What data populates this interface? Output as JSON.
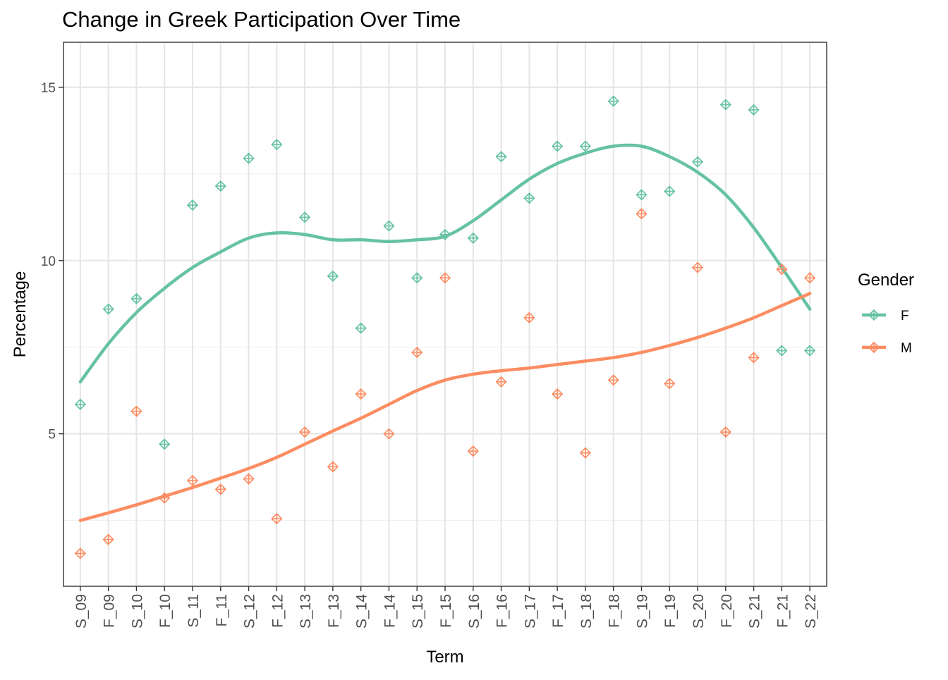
{
  "chart_data": {
    "type": "scatter",
    "title": "Change in Greek Participation Over Time",
    "xlabel": "Term",
    "ylabel": "Percentage",
    "ylim": [
      0.6,
      16.3
    ],
    "yticks": [
      5,
      10,
      15
    ],
    "grid": true,
    "legend": {
      "title": "Gender",
      "placement": "right"
    },
    "categories": [
      "S_09",
      "F_09",
      "S_10",
      "F_10",
      "S_11",
      "F_11",
      "S_12",
      "F_12",
      "S_13",
      "F_13",
      "S_14",
      "F_14",
      "S_15",
      "F_15",
      "S_16",
      "F_16",
      "S_17",
      "F_17",
      "S_18",
      "F_18",
      "S_19",
      "F_19",
      "S_20",
      "F_20",
      "S_21",
      "F_21",
      "S_22"
    ],
    "series": [
      {
        "name": "F",
        "color": "#66c2a5",
        "values": [
          5.85,
          8.6,
          8.9,
          4.7,
          11.6,
          12.15,
          12.95,
          13.35,
          11.25,
          9.55,
          8.05,
          11.0,
          9.5,
          10.75,
          10.65,
          13.0,
          11.8,
          13.3,
          13.3,
          14.6,
          11.9,
          12.0,
          12.85,
          14.5,
          14.35,
          7.4,
          7.4
        ],
        "smooth": [
          6.5,
          7.6,
          8.5,
          9.2,
          9.8,
          10.25,
          10.65,
          10.8,
          10.75,
          10.6,
          10.6,
          10.55,
          10.6,
          10.7,
          11.15,
          11.75,
          12.35,
          12.8,
          13.1,
          13.3,
          13.3,
          13.0,
          12.55,
          11.9,
          10.95,
          9.8,
          8.6
        ]
      },
      {
        "name": "M",
        "color": "#fc8d62",
        "values": [
          1.55,
          1.95,
          5.65,
          3.15,
          3.65,
          3.4,
          3.7,
          2.55,
          5.05,
          4.05,
          6.15,
          5.0,
          7.35,
          9.5,
          4.5,
          6.5,
          8.35,
          6.15,
          4.45,
          6.55,
          11.35,
          6.45,
          9.8,
          5.05,
          7.2,
          9.75,
          9.5
        ],
        "smooth": [
          2.5,
          2.72,
          2.95,
          3.2,
          3.45,
          3.72,
          4.0,
          4.32,
          4.7,
          5.08,
          5.45,
          5.85,
          6.25,
          6.55,
          6.72,
          6.82,
          6.9,
          7.0,
          7.1,
          7.2,
          7.35,
          7.55,
          7.78,
          8.05,
          8.35,
          8.7,
          9.05
        ]
      }
    ]
  }
}
